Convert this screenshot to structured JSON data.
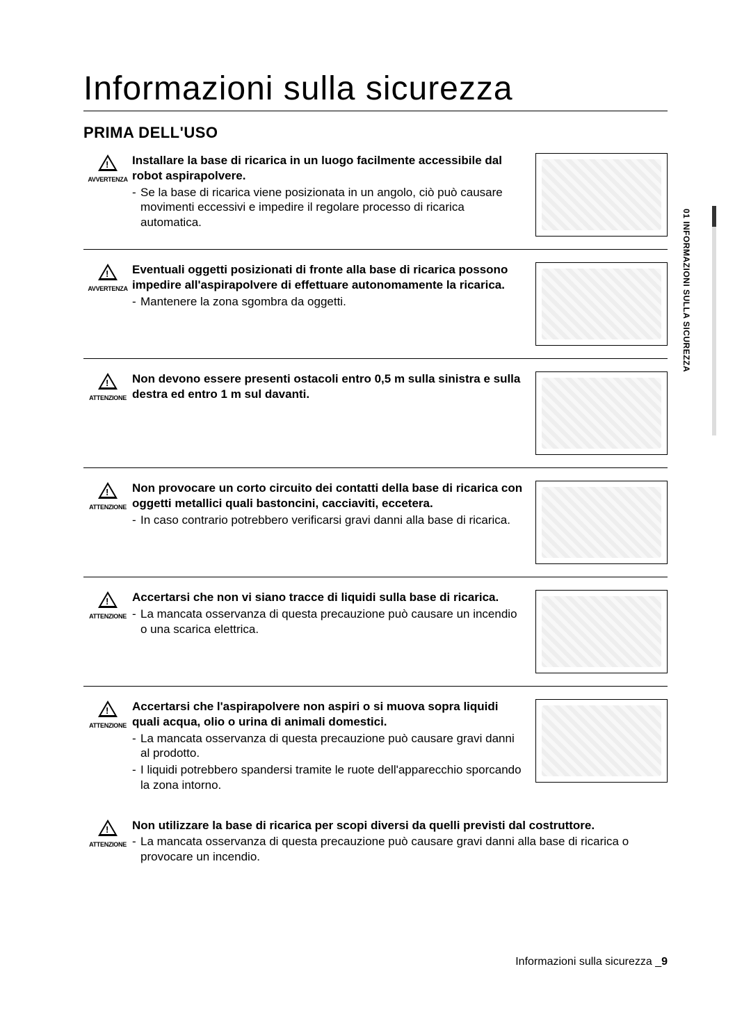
{
  "title": "Informazioni sulla sicurezza",
  "section_heading": "PRIMA DELL'USO",
  "side_tab": "01 INFORMAZIONI SULLA SICUREZZA",
  "labels": {
    "avvertenza": "AVVERTENZA",
    "attenzione": "ATTENZIONE"
  },
  "items": [
    {
      "level": "avvertenza",
      "bold": "Installare la base di ricarica in un luogo facilmente accessibile dal robot aspirapolvere.",
      "subs": [
        "Se la base di ricarica viene posizionata in un angolo, ciò può causare movimenti eccessivi e impedire il regolare processo di ricarica automatica."
      ],
      "has_img": true
    },
    {
      "level": "avvertenza",
      "bold": "Eventuali oggetti posizionati di fronte alla base di ricarica possono impedire all'aspirapolvere di effettuare autonomamente la ricarica.",
      "subs": [
        "Mantenere la zona sgombra da oggetti."
      ],
      "has_img": true
    },
    {
      "level": "attenzione",
      "bold": "Non devono essere presenti ostacoli entro 0,5 m sulla sinistra e sulla destra ed entro 1 m sul davanti.",
      "subs": [],
      "has_img": true
    },
    {
      "level": "attenzione",
      "bold": "Non provocare un corto circuito dei contatti della base di ricarica con oggetti metallici quali bastoncini, cacciaviti, eccetera.",
      "subs": [
        "In caso contrario potrebbero verificarsi gravi danni alla base di ricarica."
      ],
      "has_img": true
    },
    {
      "level": "attenzione",
      "bold": "Accertarsi che non vi siano tracce di liquidi sulla base di ricarica.",
      "subs": [
        "La mancata osservanza di questa precauzione può causare un incendio o una scarica elettrica."
      ],
      "has_img": true
    },
    {
      "level": "attenzione",
      "bold": "Accertarsi che l'aspirapolvere non aspiri o si muova sopra liquidi quali acqua, olio o urina di animali domestici.",
      "subs": [
        "La mancata osservanza di questa precauzione può causare gravi danni al prodotto.",
        "I liquidi potrebbero spandersi tramite le ruote dell'apparecchio sporcando la zona intorno."
      ],
      "has_img": true,
      "no_border": true
    },
    {
      "level": "attenzione",
      "bold": "Non utilizzare la base di ricarica per scopi diversi da quelli previsti dal costruttore.",
      "subs": [
        "La mancata osservanza di questa precauzione può causare gravi danni alla base di ricarica o provocare un incendio."
      ],
      "has_img": false
    }
  ],
  "footer_text": "Informazioni sulla sicurezza _",
  "footer_page": "9",
  "colors": {
    "text": "#000000",
    "background": "#ffffff",
    "side_bar_light": "#dddddd",
    "side_bar_dark": "#333333"
  }
}
